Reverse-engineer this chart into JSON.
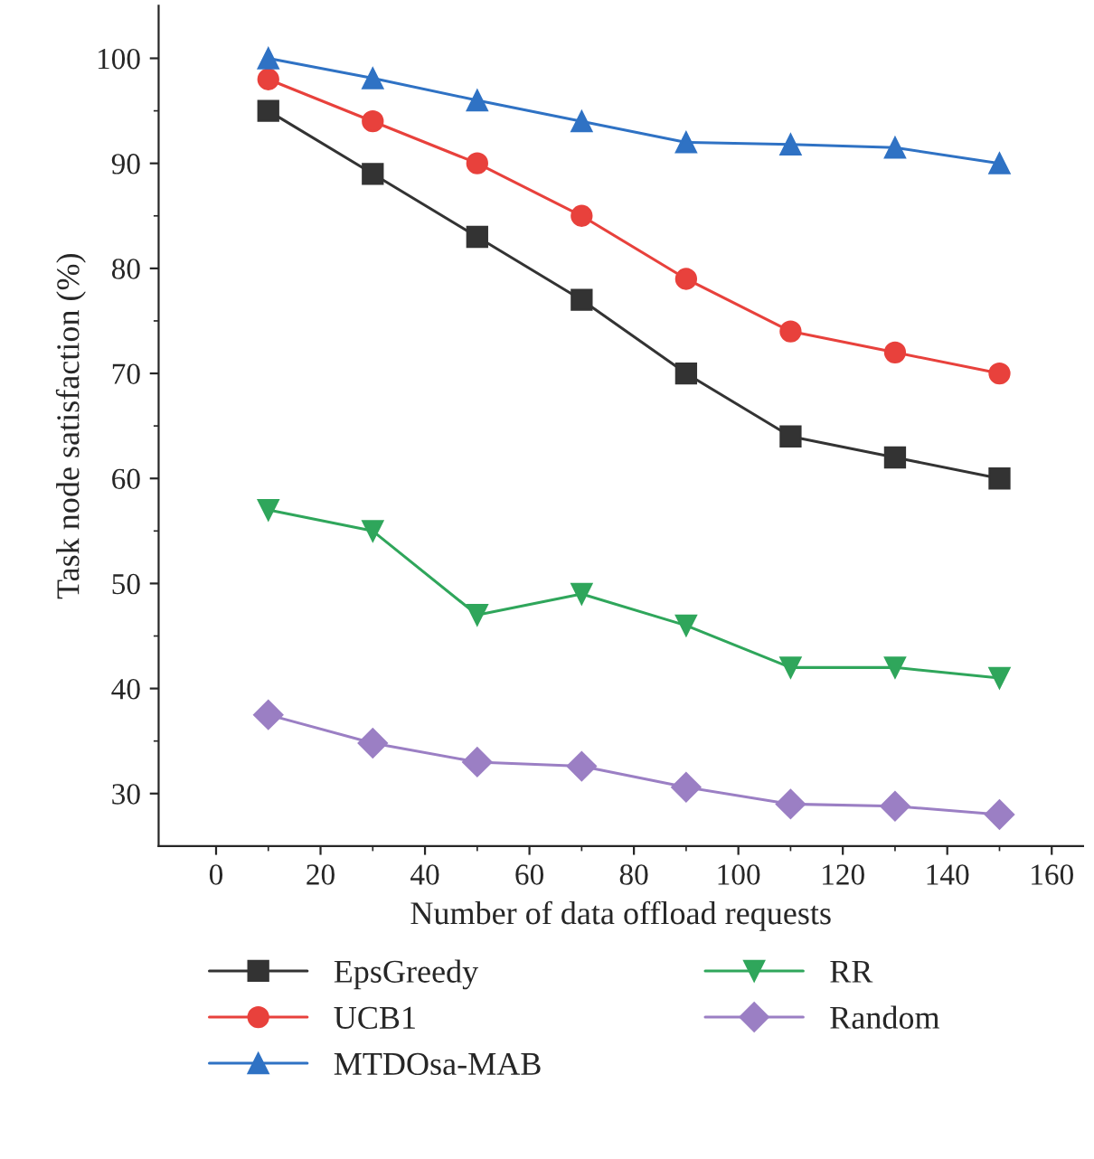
{
  "chart_data": {
    "type": "line",
    "xlabel": "Number of data offload requests",
    "ylabel": "Task node satisfaction (%)",
    "x": [
      10,
      30,
      50,
      70,
      90,
      110,
      130,
      150
    ],
    "series": [
      {
        "name": "EpsGreedy",
        "color": "#333333",
        "marker": "square",
        "values": [
          95,
          89,
          83,
          77,
          70,
          64,
          62,
          60
        ]
      },
      {
        "name": "UCB1",
        "color": "#e8413c",
        "marker": "circle",
        "values": [
          98,
          94,
          90,
          85,
          79,
          74,
          72,
          70
        ]
      },
      {
        "name": "MTDOsa-MAB",
        "color": "#2f72c4",
        "marker": "triangle",
        "values": [
          100,
          98.1,
          96,
          94,
          92,
          91.8,
          91.5,
          90
        ]
      },
      {
        "name": "RR",
        "color": "#2fa65b",
        "marker": "triangle_down",
        "values": [
          57,
          55,
          47,
          49,
          46,
          42,
          42,
          41
        ]
      },
      {
        "name": "Random",
        "color": "#9b7fc4",
        "marker": "diamond",
        "values": [
          37.5,
          34.8,
          33,
          32.6,
          30.6,
          29,
          28.8,
          28
        ]
      }
    ],
    "xlim": [
      -11,
      166
    ],
    "xticks": [
      0,
      20,
      40,
      60,
      80,
      100,
      120,
      140,
      160
    ],
    "ylim": [
      25,
      105
    ],
    "yticks": [
      30,
      40,
      50,
      60,
      70,
      80,
      90,
      100
    ],
    "grid": false,
    "legend": "bottom",
    "line_style": "solid"
  }
}
